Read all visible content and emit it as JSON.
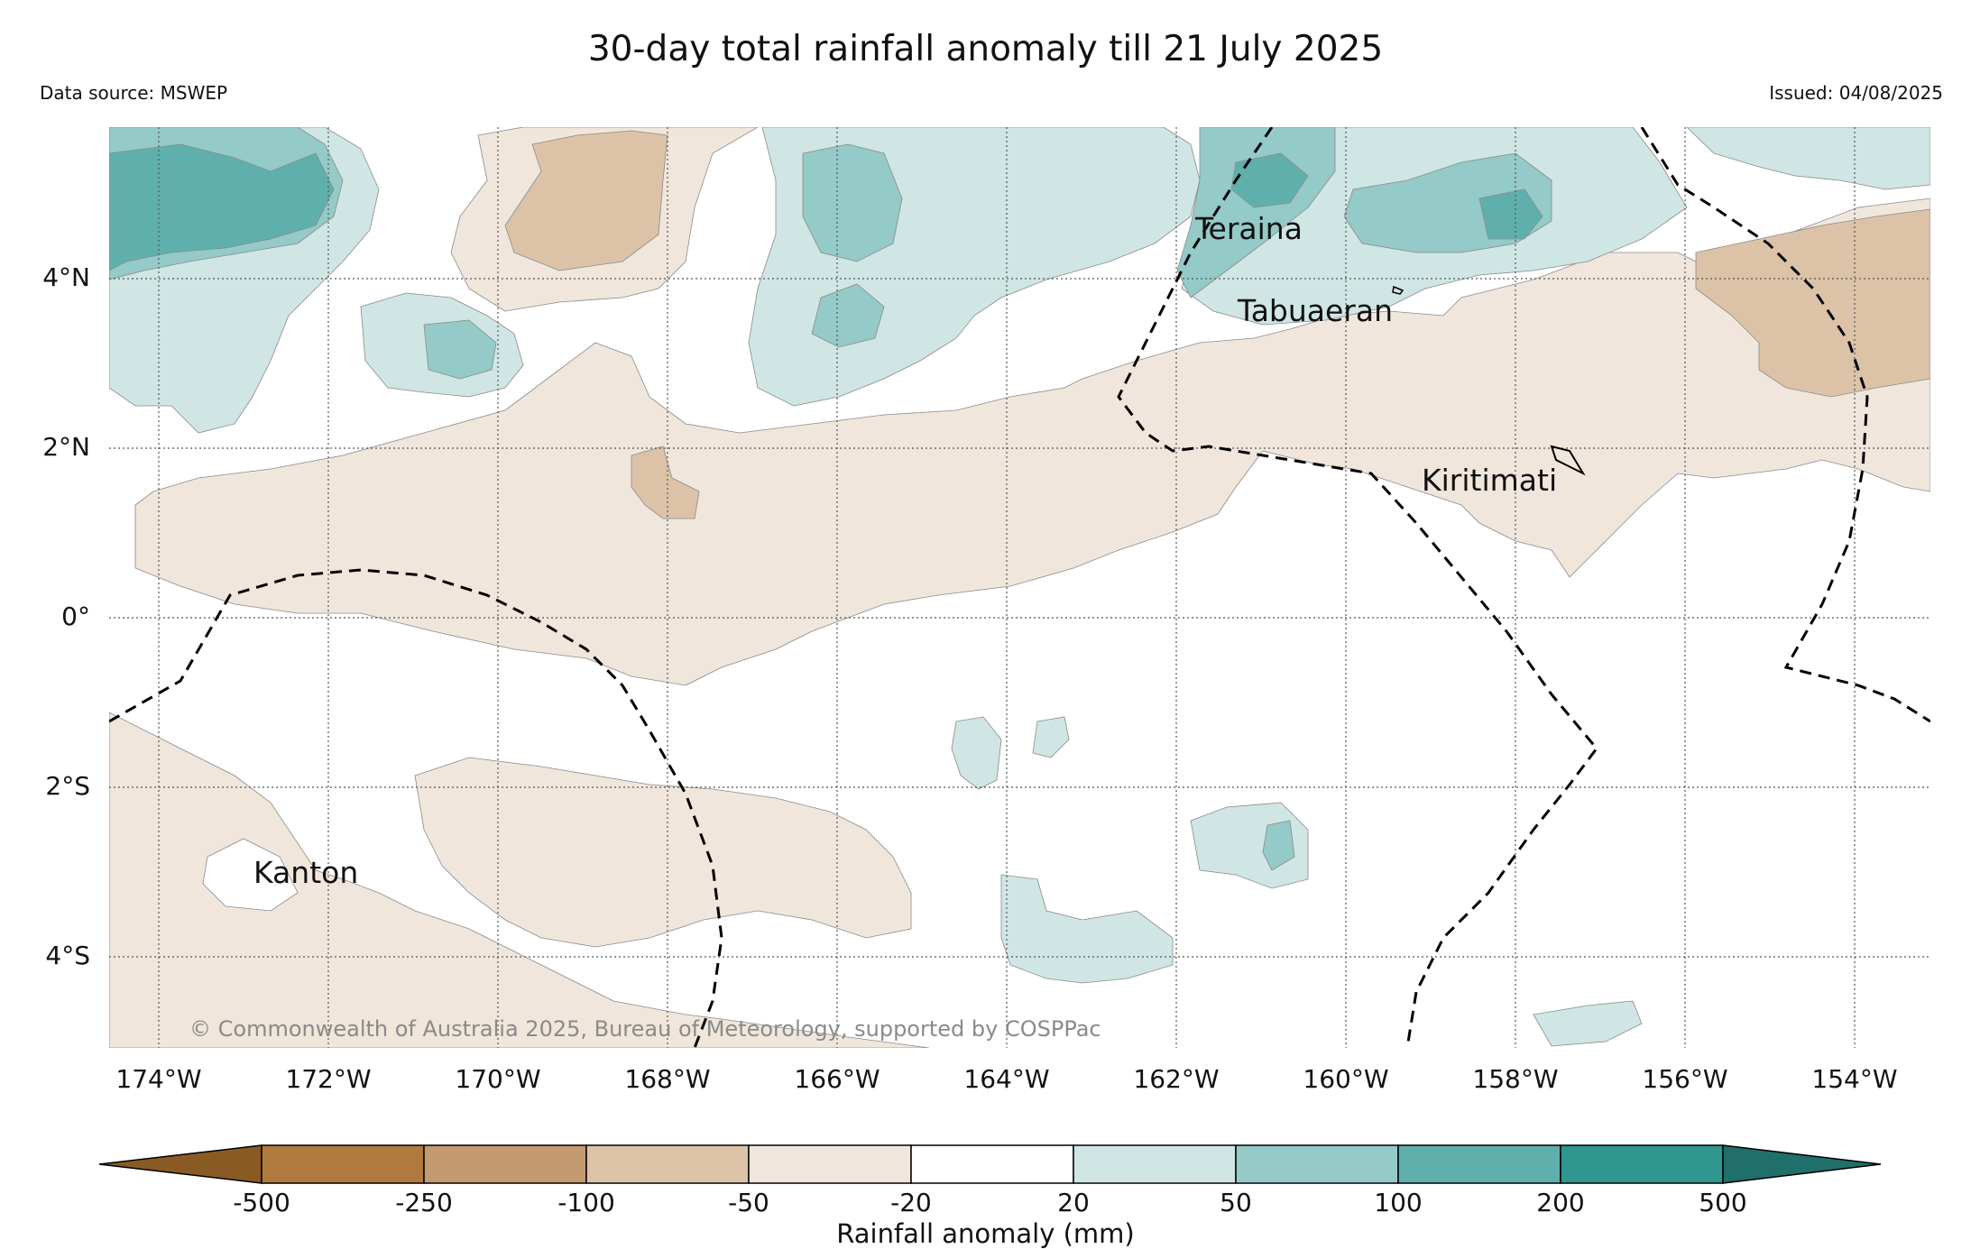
{
  "title": "30-day total rainfall anomaly till 21 July 2025",
  "data_source": "Data source: MSWEP",
  "issued": "Issued: 04/08/2025",
  "copyright": "© Commonwealth of Australia 2025, Bureau of Meteorology, supported by COSPPac",
  "y_ticks": [
    "4°N",
    "2°N",
    "0°",
    "2°S",
    "4°S"
  ],
  "x_ticks": [
    "174°W",
    "172°W",
    "170°W",
    "168°W",
    "166°W",
    "164°W",
    "162°W",
    "160°W",
    "158°W",
    "156°W",
    "154°W"
  ],
  "places": [
    {
      "name": "Teraina"
    },
    {
      "name": "Tabuaeran"
    },
    {
      "name": "Kiritimati"
    },
    {
      "name": "Kanton"
    }
  ],
  "colorbar": {
    "label": "Rainfall anomaly (mm)",
    "ticks": [
      "-500",
      "-250",
      "-100",
      "-50",
      "-20",
      "20",
      "50",
      "100",
      "200",
      "500"
    ],
    "colors": [
      "#8a5a25",
      "#b07a3e",
      "#c49a70",
      "#dcc3a8",
      "#f0e6dc",
      "#ffffff",
      "#cfe6e4",
      "#94cac7",
      "#5fb0ad",
      "#2f9690",
      "#1f6f6a"
    ]
  },
  "map_extent": {
    "lon": [
      -174.6,
      -153.0
    ],
    "lat": [
      -5.1,
      5.8
    ]
  }
}
